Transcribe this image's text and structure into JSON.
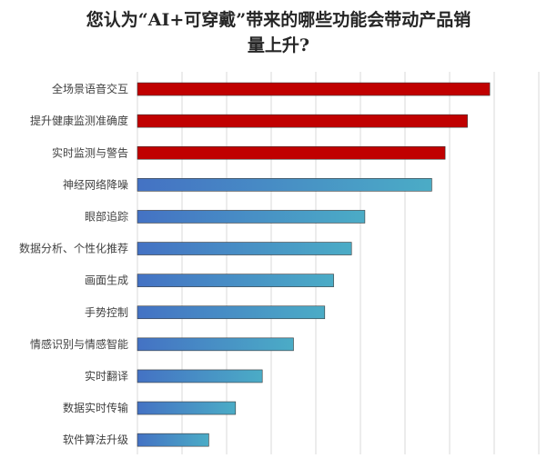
{
  "chart_data": {
    "type": "bar",
    "orientation": "horizontal",
    "title_lines": [
      "您认为“AI+可穿戴”带来的哪些功能会带动产品销",
      "量上升?"
    ],
    "categories": [
      "全场景语音交互",
      "提升健康监测准确度",
      "实时监测与警告",
      "神经网络降噪",
      "眼部追踪",
      "数据分析、个性化推荐",
      "画面生成",
      "手势控制",
      "情感识别与情感智能",
      "实时翻译",
      "数据实时传输",
      "软件算法升级"
    ],
    "values": [
      7.9,
      7.4,
      6.9,
      6.6,
      5.1,
      4.8,
      4.4,
      4.2,
      3.5,
      2.8,
      2.2,
      1.6
    ],
    "highlight_count": 3,
    "xlim": [
      0,
      9
    ],
    "grid": true,
    "legend": "none",
    "colors": {
      "highlight": "#c00000",
      "gradient_start": "#4472c4",
      "gradient_end": "#4bacc6"
    }
  }
}
